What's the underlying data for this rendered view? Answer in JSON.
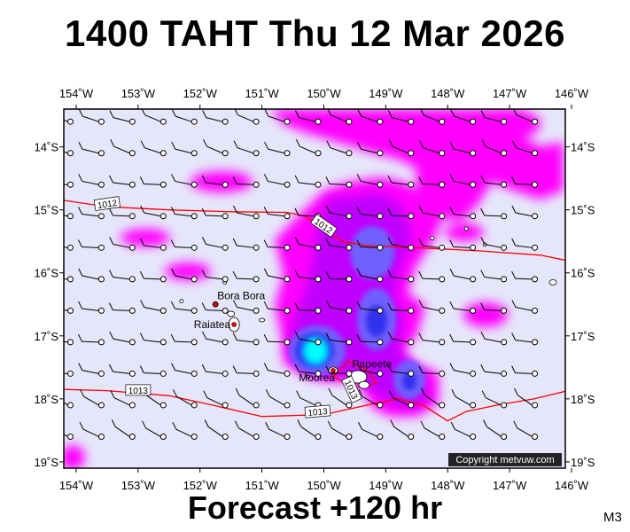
{
  "header": {
    "title": "1400 TAHT Thu 12 Mar 2026"
  },
  "footer": {
    "forecast": "Forecast +120 hr",
    "model": "M3"
  },
  "credit": "Copyright metvuw.com",
  "map": {
    "lon_labels": [
      "154˚W",
      "153˚W",
      "152˚W",
      "151˚W",
      "150˚W",
      "149˚W",
      "148˚W",
      "147˚W",
      "146˚W"
    ],
    "lon_values": [
      -154,
      -153,
      -152,
      -151,
      -150,
      -149,
      -148,
      -147,
      -146
    ],
    "lat_labels": [
      "14˚S",
      "15˚S",
      "16˚S",
      "17˚S",
      "18˚S",
      "19˚S"
    ],
    "lat_values": [
      -14,
      -15,
      -16,
      -17,
      -18,
      -19
    ],
    "lon_range": [
      -154.2,
      -146.1
    ],
    "lat_range": [
      -13.4,
      -19.1
    ],
    "background_color": "#e6e6fa",
    "isobar_color": "#ff0000",
    "rain_colors": [
      "#ff00ff",
      "#c000ff",
      "#8060ff",
      "#4040ff",
      "#00ffff"
    ],
    "isobars": [
      {
        "label": "1012",
        "points": [
          [
            -154.2,
            -14.85
          ],
          [
            -153.5,
            -14.95
          ],
          [
            -152.5,
            -15.0
          ],
          [
            -151.5,
            -15.03
          ],
          [
            -150.6,
            -15.04
          ],
          [
            -150.3,
            -15.1
          ],
          [
            -150.0,
            -15.3
          ],
          [
            -149.7,
            -15.5
          ],
          [
            -149.3,
            -15.57
          ],
          [
            -148.5,
            -15.6
          ],
          [
            -147.5,
            -15.65
          ],
          [
            -146.5,
            -15.72
          ],
          [
            -146.1,
            -15.8
          ]
        ]
      },
      {
        "label": "1013",
        "points": [
          [
            -154.2,
            -17.85
          ],
          [
            -153.5,
            -17.87
          ],
          [
            -152.5,
            -17.95
          ],
          [
            -151.8,
            -18.1
          ],
          [
            -151.0,
            -18.28
          ],
          [
            -150.0,
            -18.25
          ],
          [
            -149.3,
            -18.1
          ],
          [
            -148.8,
            -18.0
          ],
          [
            -148.4,
            -18.1
          ],
          [
            -148.0,
            -18.35
          ],
          [
            -147.7,
            -18.2
          ],
          [
            -147.2,
            -18.1
          ],
          [
            -146.6,
            -18.0
          ],
          [
            -146.1,
            -17.88
          ]
        ]
      },
      {
        "label": "1013",
        "points": [
          [
            -149.85,
            -17.65
          ],
          [
            -149.6,
            -17.4
          ],
          [
            -149.3,
            -17.55
          ],
          [
            -149.15,
            -17.75
          ],
          [
            -149.5,
            -17.82
          ],
          [
            -149.85,
            -17.65
          ]
        ]
      }
    ],
    "isobar_labels": [
      {
        "text": "1012",
        "lon": -153.5,
        "lat": -14.9,
        "angle": -8
      },
      {
        "text": "1012",
        "lon": -150.0,
        "lat": -15.25,
        "angle": 35
      },
      {
        "text": "1013",
        "lon": -153.0,
        "lat": -17.86,
        "angle": 0
      },
      {
        "text": "1013",
        "lon": -150.1,
        "lat": -18.2,
        "angle": -5
      },
      {
        "text": "1013",
        "lon": -149.55,
        "lat": -17.85,
        "angle": 65
      }
    ],
    "places": [
      {
        "name": "Bora Bora",
        "lon": -151.75,
        "lat": -16.5,
        "marker": true
      },
      {
        "name": "Raiatea",
        "lon": -151.45,
        "lat": -16.82,
        "marker": true
      },
      {
        "name": "Moorea",
        "lon": -149.85,
        "lat": -17.55,
        "marker": true
      },
      {
        "name": "Papeete",
        "lon": -149.57,
        "lat": -17.53,
        "marker": false
      }
    ]
  }
}
